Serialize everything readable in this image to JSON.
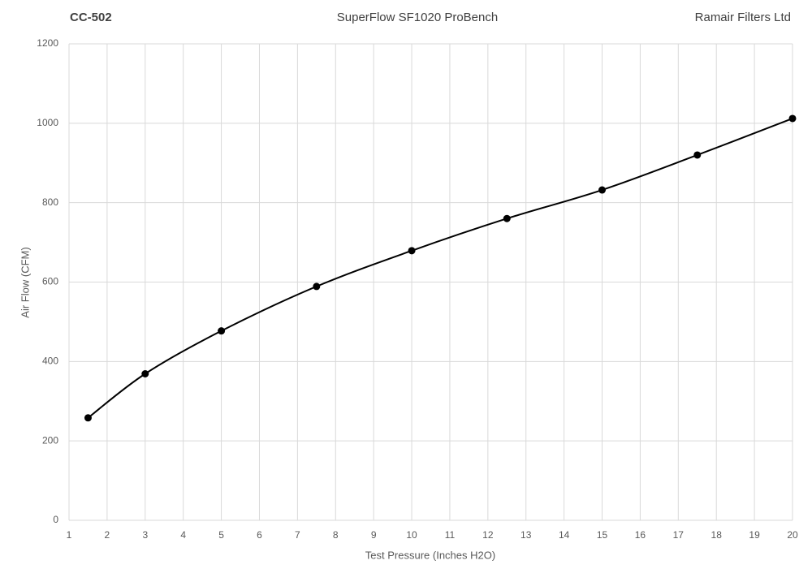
{
  "chart_data": {
    "type": "line",
    "title": "SuperFlow SF1020 ProBench",
    "annotations": [
      "CC-502",
      "Ramair Filters Ltd"
    ],
    "x_label": "Test Pressure (Inches H2O)",
    "y_label": "Air Flow (CFM)",
    "x": [
      1.5,
      3,
      5,
      7.5,
      10,
      12.5,
      15,
      17.5,
      20
    ],
    "series": [
      {
        "color": "#000000",
        "values": [
          258,
          369,
          477,
          589,
          679,
          760,
          832,
          920,
          1012
        ]
      }
    ],
    "xlim": [
      1,
      20
    ],
    "xticks": [
      1,
      2,
      3,
      4,
      5,
      6,
      7,
      8,
      9,
      10,
      11,
      12,
      13,
      14,
      15,
      16,
      17,
      18,
      19,
      20
    ],
    "ylim": [
      0,
      1200
    ],
    "yticks": [
      0,
      200,
      400,
      600,
      800,
      1000,
      1200
    ],
    "grid": true,
    "smooth": true,
    "markers": true
  }
}
